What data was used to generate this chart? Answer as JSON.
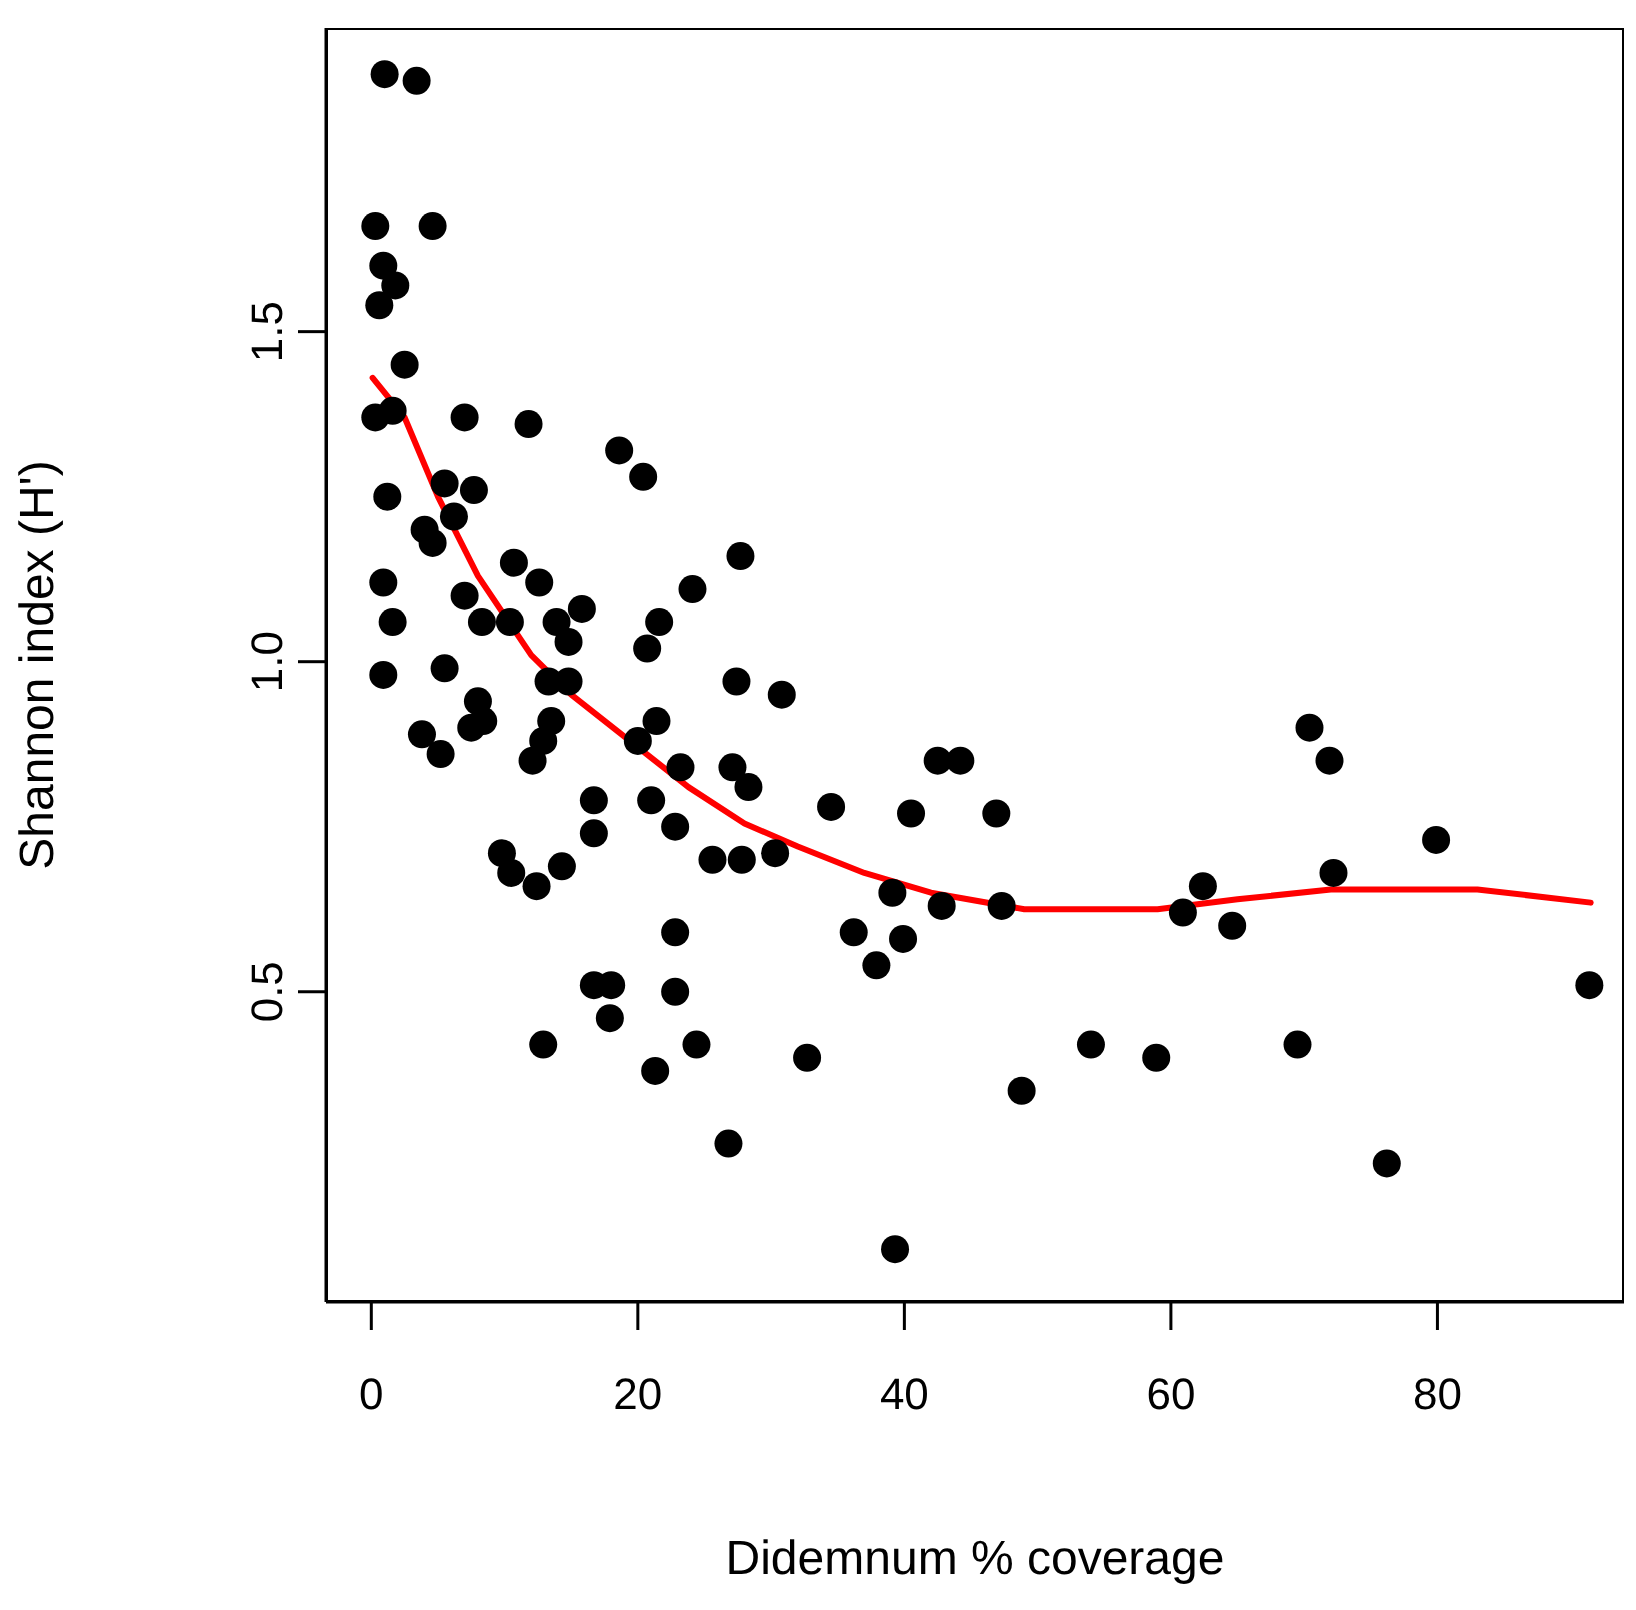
{
  "chart_data": {
    "type": "scatter",
    "xlabel": "Didemnum % coverage",
    "ylabel": "Shannon index (H')",
    "xlim": [
      -3.4,
      94
    ],
    "ylim": [
      0.03,
      1.96
    ],
    "xticks": [
      0,
      20,
      40,
      60,
      80
    ],
    "yticks": [
      {
        "value": 0.5,
        "label": "0.5"
      },
      {
        "value": 1,
        "label": "1.0"
      },
      {
        "value": 1.5,
        "label": "1.5"
      }
    ],
    "marker": "circle",
    "series": [
      {
        "type": "scatter",
        "color": "#000000",
        "x": [
          1.0,
          3.4,
          0.3,
          4.6,
          0.9,
          1.8,
          0.6,
          2.5,
          1.6,
          0.3,
          7.0,
          11.8,
          18.6,
          20.4,
          1.2,
          5.5,
          7.7,
          4.0,
          6.2,
          4.6,
          27.7,
          0.9,
          10.7,
          12.6,
          24.1,
          7.0,
          1.6,
          8.3,
          10.4,
          13.9,
          15.8,
          21.6,
          14.8,
          20.7,
          0.9,
          5.5,
          13.3,
          14.8,
          27.4,
          30.8,
          8.0,
          7.5,
          8.4,
          3.8,
          5.2,
          13.5,
          12.9,
          12.1,
          20.0,
          21.4,
          23.2,
          27.1,
          28.3,
          34.5,
          16.7,
          21.0,
          16.7,
          22.8,
          25.6,
          27.8,
          30.3,
          9.8,
          10.5,
          12.4,
          14.3,
          40.5,
          42.5,
          44.2,
          46.9,
          39.1,
          42.8,
          47.3,
          36.2,
          39.9,
          37.9,
          22.8,
          16.7,
          18.0,
          17.9,
          22.8,
          12.9,
          21.3,
          24.4,
          26.8,
          32.7,
          48.8,
          54.0,
          58.9,
          39.3,
          60.9,
          62.4,
          64.6,
          70.4,
          71.9,
          72.2,
          69.5,
          76.2,
          79.9,
          91.4
        ],
        "values": [
          1.89,
          1.88,
          1.66,
          1.66,
          1.6,
          1.57,
          1.54,
          1.45,
          1.38,
          1.37,
          1.37,
          1.36,
          1.32,
          1.28,
          1.25,
          1.27,
          1.26,
          1.2,
          1.22,
          1.18,
          1.16,
          1.12,
          1.15,
          1.12,
          1.11,
          1.1,
          1.06,
          1.06,
          1.06,
          1.06,
          1.08,
          1.06,
          1.03,
          1.02,
          0.98,
          0.99,
          0.97,
          0.97,
          0.97,
          0.95,
          0.94,
          0.9,
          0.91,
          0.89,
          0.86,
          0.91,
          0.88,
          0.85,
          0.88,
          0.91,
          0.84,
          0.84,
          0.81,
          0.78,
          0.79,
          0.79,
          0.74,
          0.75,
          0.7,
          0.7,
          0.71,
          0.71,
          0.68,
          0.66,
          0.69,
          0.77,
          0.85,
          0.85,
          0.77,
          0.65,
          0.63,
          0.63,
          0.59,
          0.58,
          0.54,
          0.59,
          0.51,
          0.51,
          0.46,
          0.5,
          0.42,
          0.38,
          0.42,
          0.27,
          0.4,
          0.35,
          0.42,
          0.4,
          0.11,
          0.62,
          0.66,
          0.6,
          0.9,
          0.85,
          0.68,
          0.42,
          0.24,
          0.73,
          0.51
        ]
      },
      {
        "type": "line",
        "color": "#ff0000",
        "marker": "none",
        "line_style": "solid",
        "x": [
          0.1,
          2.5,
          5,
          8,
          12,
          15,
          19.4,
          23.8,
          28,
          32,
          37,
          42,
          49,
          59,
          65,
          72,
          83,
          91.5
        ],
        "values": [
          1.43,
          1.37,
          1.25,
          1.13,
          1.01,
          0.95,
          0.88,
          0.81,
          0.755,
          0.72,
          0.68,
          0.65,
          0.625,
          0.625,
          0.64,
          0.655,
          0.655,
          0.635
        ]
      }
    ]
  }
}
